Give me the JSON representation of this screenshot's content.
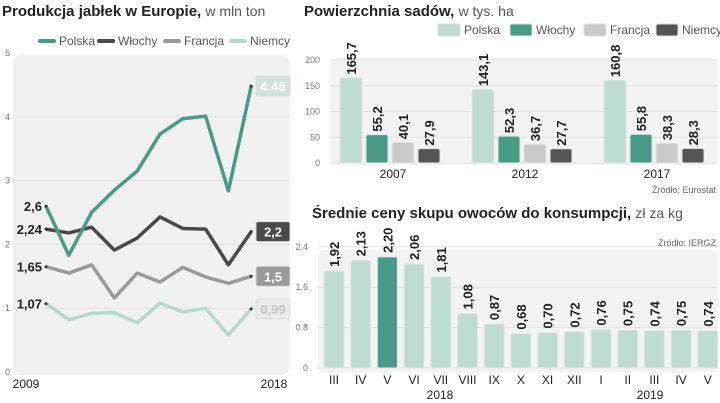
{
  "chart_data": [
    {
      "type": "line",
      "title": "Produkcja jabłek w Europie,",
      "subtitle": "w mln ton",
      "x": [
        2009,
        2010,
        2011,
        2012,
        2013,
        2014,
        2015,
        2016,
        2017,
        2018
      ],
      "x_tick_labels": [
        "2009",
        "2018"
      ],
      "ylim": [
        0,
        5
      ],
      "y_ticks": [
        "0",
        "1",
        "2",
        "3",
        "4",
        "5"
      ],
      "legend": "top",
      "series": [
        {
          "name": "Polska",
          "color": "#4a9a88",
          "values": [
            2.6,
            1.83,
            2.5,
            2.85,
            3.15,
            3.73,
            3.97,
            4.01,
            2.84,
            4.48
          ],
          "start_label": "2,6",
          "end_label": "4,48"
        },
        {
          "name": "Włochy",
          "color": "#4a4a4a",
          "values": [
            2.24,
            2.18,
            2.27,
            1.91,
            2.1,
            2.43,
            2.25,
            2.24,
            1.68,
            2.2
          ],
          "start_label": "2,24",
          "end_label": "2,2"
        },
        {
          "name": "Francja",
          "color": "#9a9a9a",
          "values": [
            1.65,
            1.55,
            1.68,
            1.16,
            1.55,
            1.41,
            1.64,
            1.49,
            1.39,
            1.5
          ],
          "start_label": "1,65",
          "end_label": "1,5"
        },
        {
          "name": "Niemcy",
          "color": "#b8d8cc",
          "values": [
            1.07,
            0.82,
            0.92,
            0.93,
            0.77,
            1.08,
            0.94,
            1.0,
            0.58,
            0.99
          ],
          "start_label": "1,07",
          "end_label": "0,99"
        }
      ]
    },
    {
      "type": "bar",
      "title": "Powierzchnia sadów,",
      "subtitle": "w tys. ha",
      "categories": [
        "2007",
        "2012",
        "2017"
      ],
      "ylim": [
        0,
        200
      ],
      "y_ticks": [
        "0",
        "50",
        "100",
        "150",
        "200"
      ],
      "legend": "top-right",
      "source": "Źródło: Eurostat",
      "series": [
        {
          "name": "Polska",
          "color": "#bfdcd2",
          "values": [
            165.7,
            143.1,
            160.8
          ],
          "labels": [
            "165,7",
            "143,1",
            "160,8"
          ]
        },
        {
          "name": "Włochy",
          "color": "#4a9a88",
          "values": [
            55.2,
            52.3,
            55.8
          ],
          "labels": [
            "55,2",
            "52,3",
            "55,8"
          ]
        },
        {
          "name": "Francja",
          "color": "#c9c9c9",
          "values": [
            40.1,
            36.7,
            38.3
          ],
          "labels": [
            "40,1",
            "36,7",
            "38,3"
          ]
        },
        {
          "name": "Niemcy",
          "color": "#555555",
          "values": [
            27.9,
            27.7,
            28.3
          ],
          "labels": [
            "27,9",
            "27,7",
            "28,3"
          ]
        }
      ]
    },
    {
      "type": "bar",
      "title": "Średnie ceny skupu owoców do konsumpcji,",
      "subtitle": "zł za kg",
      "source": "Źródło: IERGZ",
      "categories": [
        "III",
        "IV",
        "V",
        "VI",
        "VII",
        "VIII",
        "IX",
        "X",
        "XI",
        "XII",
        "I",
        "II",
        "III",
        "IV",
        "V"
      ],
      "year_labels": [
        "2018",
        "2019"
      ],
      "values": [
        1.92,
        2.13,
        2.2,
        2.06,
        1.81,
        1.08,
        0.87,
        0.68,
        0.7,
        0.72,
        0.76,
        0.75,
        0.74,
        0.75,
        0.74
      ],
      "labels": [
        "1,92",
        "2,13",
        "2,20",
        "2,06",
        "1,81",
        "1,08",
        "0,87",
        "0,68",
        "0,70",
        "0,72",
        "0,76",
        "0,75",
        "0,74",
        "0,75",
        "0,74"
      ],
      "highlight_index": 2,
      "color": "#bfdcd2",
      "highlight_color": "#4a9a88",
      "ylim": [
        0,
        2.4
      ],
      "y_ticks": [
        "0",
        "0.8",
        "1.6",
        "2.4"
      ]
    }
  ]
}
